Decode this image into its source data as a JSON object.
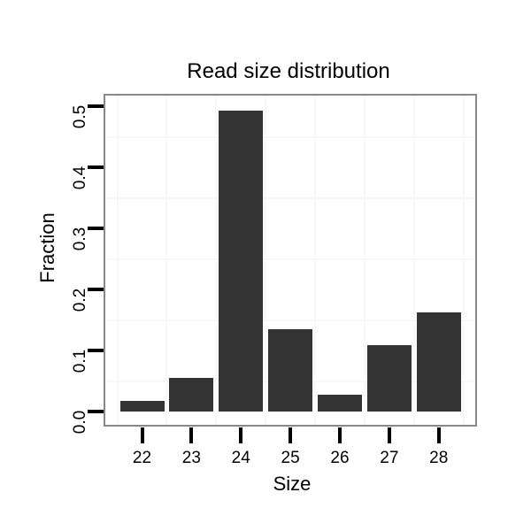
{
  "chart_data": {
    "type": "bar",
    "title": "Read size distribution",
    "xlabel": "Size",
    "ylabel": "Fraction",
    "categories": [
      "22",
      "23",
      "24",
      "25",
      "26",
      "27",
      "28"
    ],
    "values": [
      0.018,
      0.055,
      0.493,
      0.135,
      0.027,
      0.108,
      0.163
    ],
    "y_tick_labels": [
      "0.0",
      "0.1",
      "0.2",
      "0.3",
      "0.4",
      "0.5"
    ],
    "y_tick_values": [
      0.0,
      0.1,
      0.2,
      0.3,
      0.4,
      0.5
    ],
    "ylim": [
      0,
      0.5
    ],
    "grid": "minor gridlines only, very faint",
    "minor_grid_y_values": [
      0.05,
      0.15,
      0.25,
      0.35,
      0.45
    ],
    "legend": "none",
    "colors": {
      "bar": "#333333",
      "panel_border": "#888888",
      "gridline": "#f8f8f8",
      "tick": "#000000",
      "text": "#000000",
      "background": "#ffffff"
    }
  }
}
